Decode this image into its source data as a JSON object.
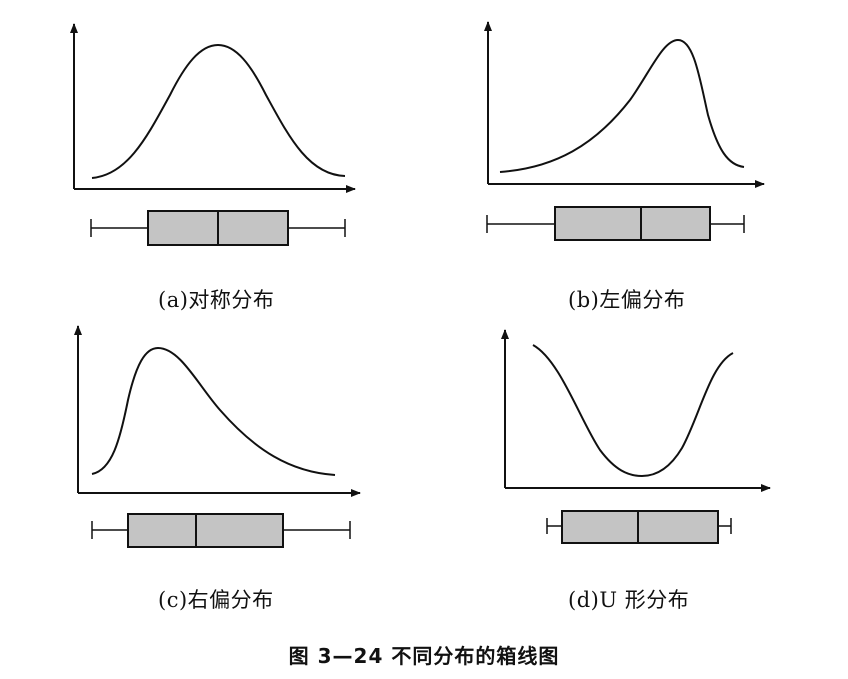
{
  "panels": [
    {
      "id": "a",
      "caption": "(a)对称分布",
      "shape": "symmetric"
    },
    {
      "id": "b",
      "caption": "(b)左偏分布",
      "shape": "left-skewed"
    },
    {
      "id": "c",
      "caption": "(c)右偏分布",
      "shape": "right-skewed"
    },
    {
      "id": "d",
      "caption": "(d)U 形分布",
      "shape": "u-shaped"
    }
  ],
  "figure_caption": "图 3—24   不同分布的箱线图",
  "colors": {
    "line": "#111111",
    "box_fill": "#c4c4c4",
    "background": "#ffffff"
  }
}
